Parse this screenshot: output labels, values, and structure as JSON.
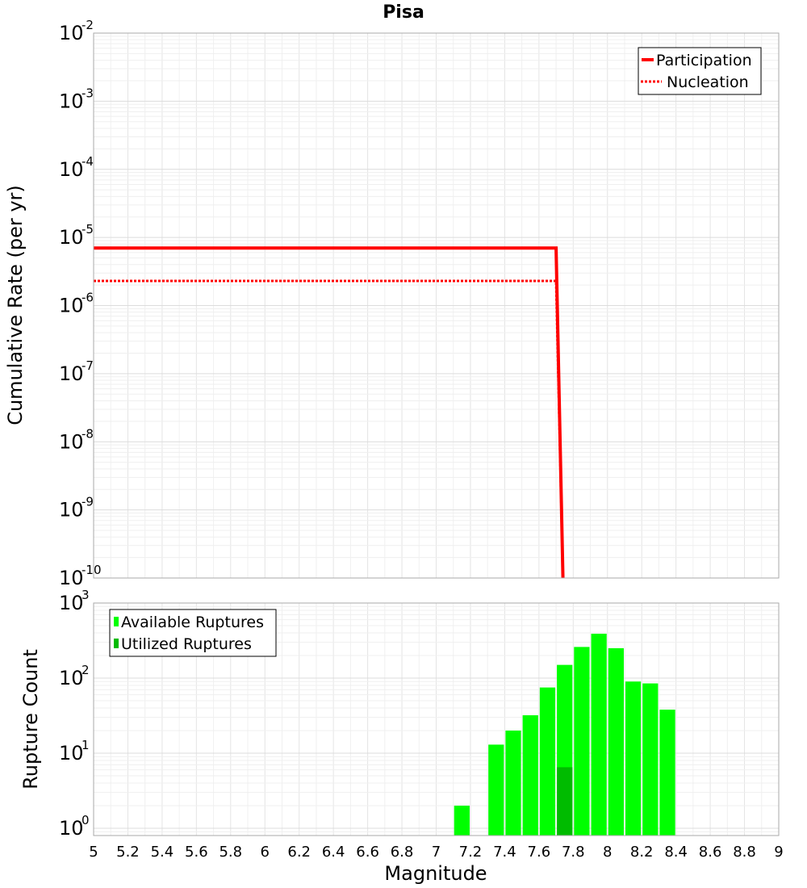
{
  "chart_data": [
    {
      "type": "line",
      "title": "Pisa",
      "xlabel": "Magnitude",
      "ylabel": "Cumulative Rate (per yr)",
      "xlim": [
        5,
        9
      ],
      "ylim": [
        1e-10,
        0.01
      ],
      "yscale": "log",
      "grid": true,
      "legend_position": "top-right",
      "y_ticks": [
        {
          "base": "10",
          "exp": "-10"
        },
        {
          "base": "10",
          "exp": "-9"
        },
        {
          "base": "10",
          "exp": "-8"
        },
        {
          "base": "10",
          "exp": "-7"
        },
        {
          "base": "10",
          "exp": "-6"
        },
        {
          "base": "10",
          "exp": "-5"
        },
        {
          "base": "10",
          "exp": "-4"
        },
        {
          "base": "10",
          "exp": "-3"
        },
        {
          "base": "10",
          "exp": "-2"
        }
      ],
      "series": [
        {
          "name": "Participation",
          "style": "solid",
          "color": "#ff0000",
          "x": [
            5,
            7.7,
            7.74
          ],
          "y": [
            7e-06,
            7e-06,
            1e-10
          ]
        },
        {
          "name": "Nucleation",
          "style": "dotted",
          "color": "#ff0000",
          "x": [
            5,
            7.7,
            7.74
          ],
          "y": [
            2.3e-06,
            2.3e-06,
            1e-10
          ]
        }
      ]
    },
    {
      "type": "bar",
      "xlabel": "Magnitude",
      "ylabel": "Rupture Count",
      "xlim": [
        5,
        9
      ],
      "ylim": [
        0.8,
        1000
      ],
      "yscale": "log",
      "grid": true,
      "legend_position": "top-left",
      "x_ticks": [
        "5",
        "5.2",
        "5.4",
        "5.6",
        "5.8",
        "6",
        "6.2",
        "6.4",
        "6.6",
        "6.8",
        "7",
        "7.2",
        "7.4",
        "7.6",
        "7.8",
        "8",
        "8.2",
        "8.4",
        "8.6",
        "8.8",
        "9"
      ],
      "y_ticks": [
        {
          "base": "10",
          "exp": "0"
        },
        {
          "base": "10",
          "exp": "1"
        },
        {
          "base": "10",
          "exp": "2"
        },
        {
          "base": "10",
          "exp": "3"
        }
      ],
      "bar_width": 0.1,
      "series": [
        {
          "name": "Available Ruptures",
          "color": "#00ff00",
          "x": [
            7.15,
            7.35,
            7.45,
            7.55,
            7.65,
            7.75,
            7.85,
            7.95,
            8.05,
            8.15,
            8.25,
            8.35
          ],
          "values": [
            2,
            13,
            20,
            32,
            75,
            150,
            260,
            390,
            250,
            90,
            85,
            38
          ]
        },
        {
          "name": "Utilized Ruptures",
          "color": "#00bb00",
          "x": [
            7.75
          ],
          "values": [
            6.5
          ]
        }
      ]
    }
  ]
}
